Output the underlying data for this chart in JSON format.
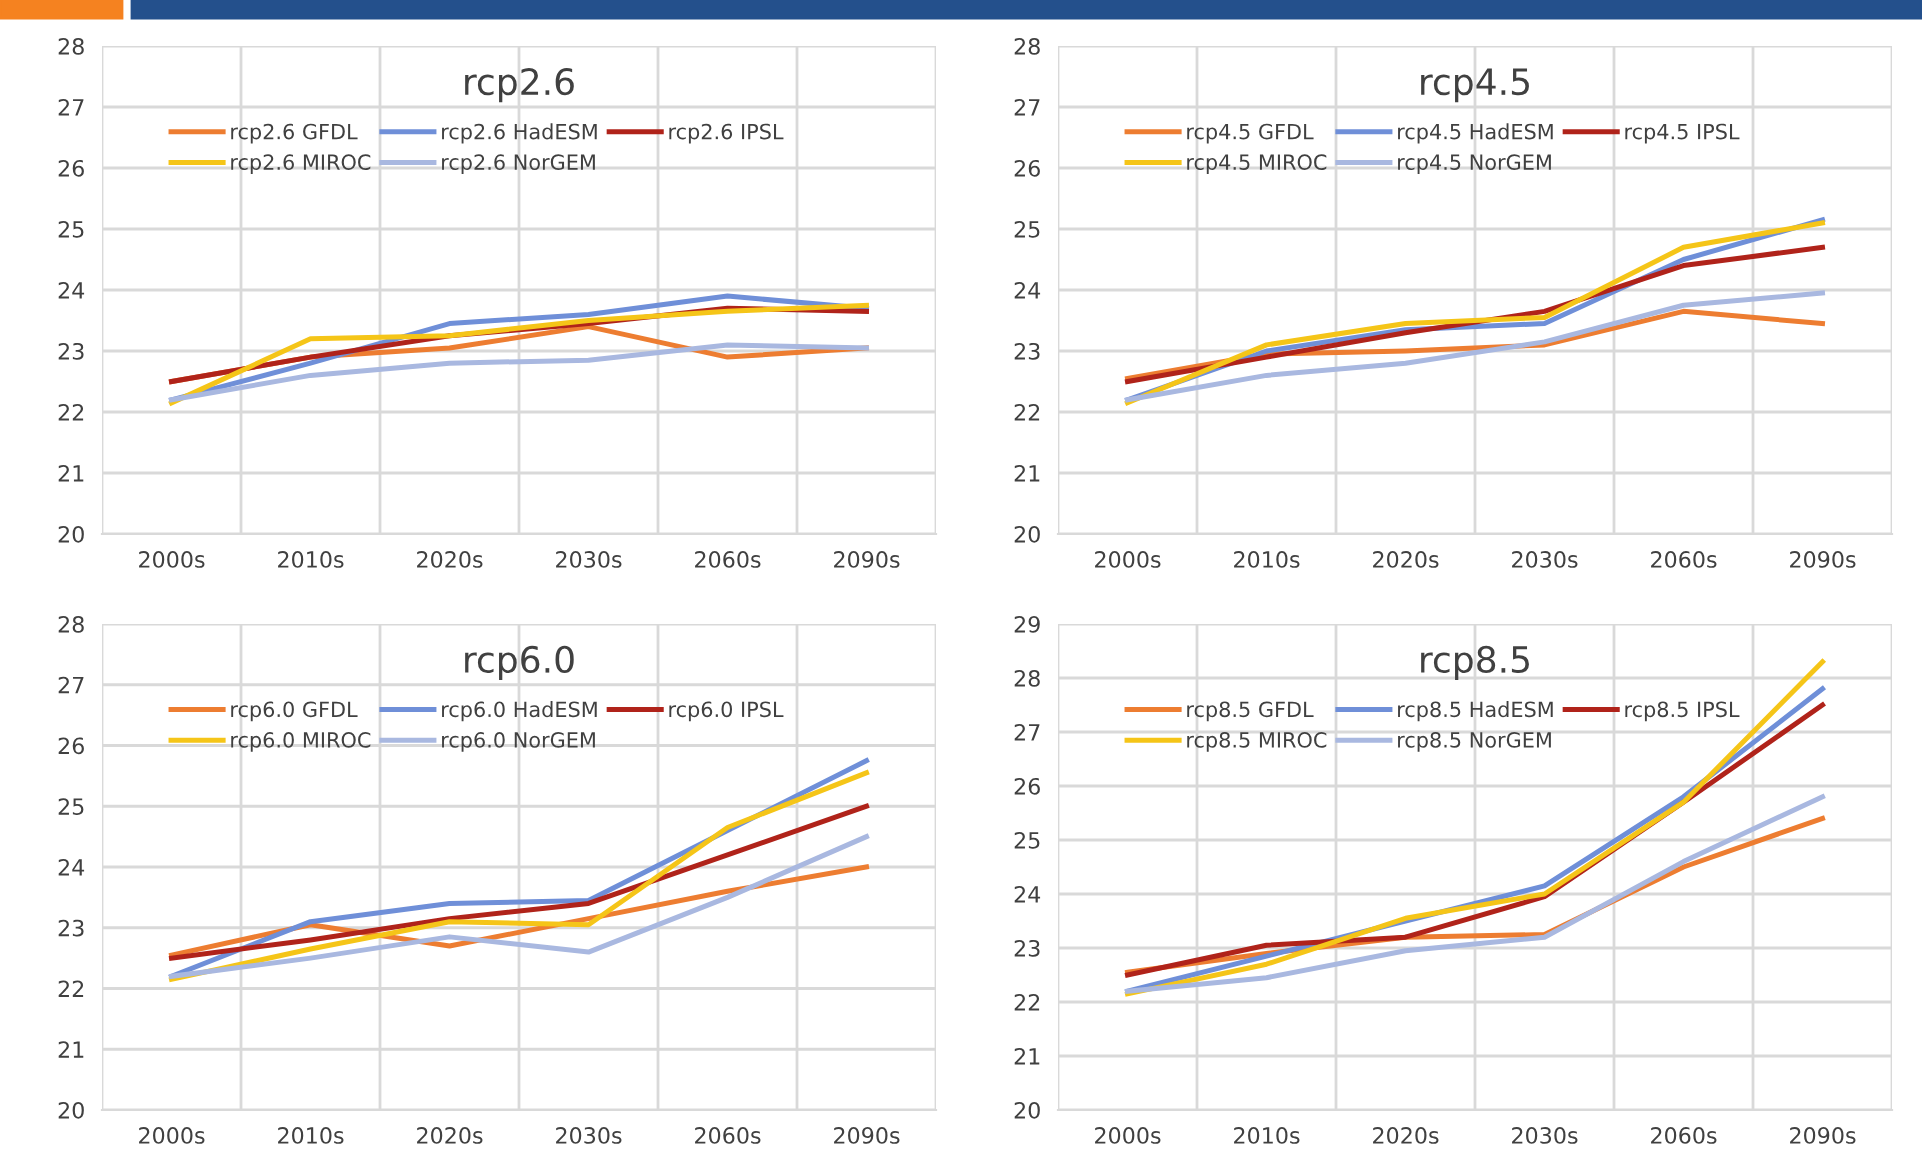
{
  "chart_data": [
    {
      "type": "line",
      "title": "rcp2.6",
      "categories": [
        "2000s",
        "2010s",
        "2020s",
        "2030s",
        "2060s",
        "2090s"
      ],
      "ylim": [
        20,
        28
      ],
      "yticks": [
        20,
        21,
        22,
        23,
        24,
        25,
        26,
        27,
        28
      ],
      "grid": true,
      "legend": "top",
      "series": [
        {
          "name": "rcp2.6 GFDL",
          "color": "#ed7d31",
          "values": [
            22.5,
            22.9,
            23.05,
            23.4,
            22.9,
            23.05
          ]
        },
        {
          "name": "rcp2.6 HadESM",
          "color": "#6f8fd8",
          "values": [
            22.2,
            22.8,
            23.45,
            23.6,
            23.9,
            23.7
          ]
        },
        {
          "name": "rcp2.6 IPSL",
          "color": "#b0231a",
          "values": [
            22.5,
            22.9,
            23.25,
            23.45,
            23.7,
            23.65
          ]
        },
        {
          "name": "rcp2.6 MIROC",
          "color": "#f5c518",
          "values": [
            22.15,
            23.2,
            23.25,
            23.5,
            23.65,
            23.75
          ]
        },
        {
          "name": "rcp2.6 NorGEM",
          "color": "#a9b8e0",
          "values": [
            22.2,
            22.6,
            22.8,
            22.85,
            23.1,
            23.05
          ]
        }
      ]
    },
    {
      "type": "line",
      "title": "rcp4.5",
      "categories": [
        "2000s",
        "2010s",
        "2020s",
        "2030s",
        "2060s",
        "2090s"
      ],
      "ylim": [
        20,
        28
      ],
      "yticks": [
        20,
        21,
        22,
        23,
        24,
        25,
        26,
        27,
        28
      ],
      "grid": true,
      "legend": "top",
      "series": [
        {
          "name": "rcp4.5 GFDL",
          "color": "#ed7d31",
          "values": [
            22.55,
            22.95,
            23.0,
            23.1,
            23.65,
            23.45
          ]
        },
        {
          "name": "rcp4.5 HadESM",
          "color": "#6f8fd8",
          "values": [
            22.2,
            23.0,
            23.35,
            23.45,
            24.5,
            25.15
          ]
        },
        {
          "name": "rcp4.5 IPSL",
          "color": "#b0231a",
          "values": [
            22.5,
            22.9,
            23.3,
            23.65,
            24.4,
            24.7
          ]
        },
        {
          "name": "rcp4.5 MIROC",
          "color": "#f5c518",
          "values": [
            22.15,
            23.1,
            23.45,
            23.55,
            24.7,
            25.1
          ]
        },
        {
          "name": "rcp4.5 NorGEM",
          "color": "#a9b8e0",
          "values": [
            22.2,
            22.6,
            22.8,
            23.15,
            23.75,
            23.95
          ]
        }
      ]
    },
    {
      "type": "line",
      "title": "rcp6.0",
      "categories": [
        "2000s",
        "2010s",
        "2020s",
        "2030s",
        "2060s",
        "2090s"
      ],
      "ylim": [
        20,
        28
      ],
      "yticks": [
        20,
        21,
        22,
        23,
        24,
        25,
        26,
        27,
        28
      ],
      "grid": true,
      "legend": "top",
      "series": [
        {
          "name": "rcp6.0 GFDL",
          "color": "#ed7d31",
          "values": [
            22.55,
            23.05,
            22.7,
            23.15,
            23.6,
            24.0
          ]
        },
        {
          "name": "rcp6.0 HadESM",
          "color": "#6f8fd8",
          "values": [
            22.2,
            23.1,
            23.4,
            23.45,
            24.6,
            25.75
          ]
        },
        {
          "name": "rcp6.0 IPSL",
          "color": "#b0231a",
          "values": [
            22.5,
            22.8,
            23.15,
            23.4,
            24.2,
            25.0
          ]
        },
        {
          "name": "rcp6.0 MIROC",
          "color": "#f5c518",
          "values": [
            22.15,
            22.65,
            23.1,
            23.05,
            24.65,
            25.55
          ]
        },
        {
          "name": "rcp6.0 NorGEM",
          "color": "#a9b8e0",
          "values": [
            22.2,
            22.5,
            22.85,
            22.6,
            23.5,
            24.5
          ]
        }
      ]
    },
    {
      "type": "line",
      "title": "rcp8.5",
      "categories": [
        "2000s",
        "2010s",
        "2020s",
        "2030s",
        "2060s",
        "2090s"
      ],
      "ylim": [
        20,
        29
      ],
      "yticks": [
        20,
        21,
        22,
        23,
        24,
        25,
        26,
        27,
        28,
        29
      ],
      "grid": true,
      "legend": "top",
      "series": [
        {
          "name": "rcp8.5 GFDL",
          "color": "#ed7d31",
          "values": [
            22.55,
            22.9,
            23.2,
            23.25,
            24.5,
            25.4
          ]
        },
        {
          "name": "rcp8.5 HadESM",
          "color": "#6f8fd8",
          "values": [
            22.2,
            22.85,
            23.5,
            24.15,
            25.8,
            27.8
          ]
        },
        {
          "name": "rcp8.5 IPSL",
          "color": "#b0231a",
          "values": [
            22.5,
            23.05,
            23.2,
            23.95,
            25.7,
            27.5
          ]
        },
        {
          "name": "rcp8.5 MIROC",
          "color": "#f5c518",
          "values": [
            22.15,
            22.7,
            23.55,
            24.0,
            25.7,
            28.3
          ]
        },
        {
          "name": "rcp8.5 NorGEM",
          "color": "#a9b8e0",
          "values": [
            22.2,
            22.45,
            22.95,
            23.2,
            24.6,
            25.8
          ]
        }
      ]
    }
  ]
}
